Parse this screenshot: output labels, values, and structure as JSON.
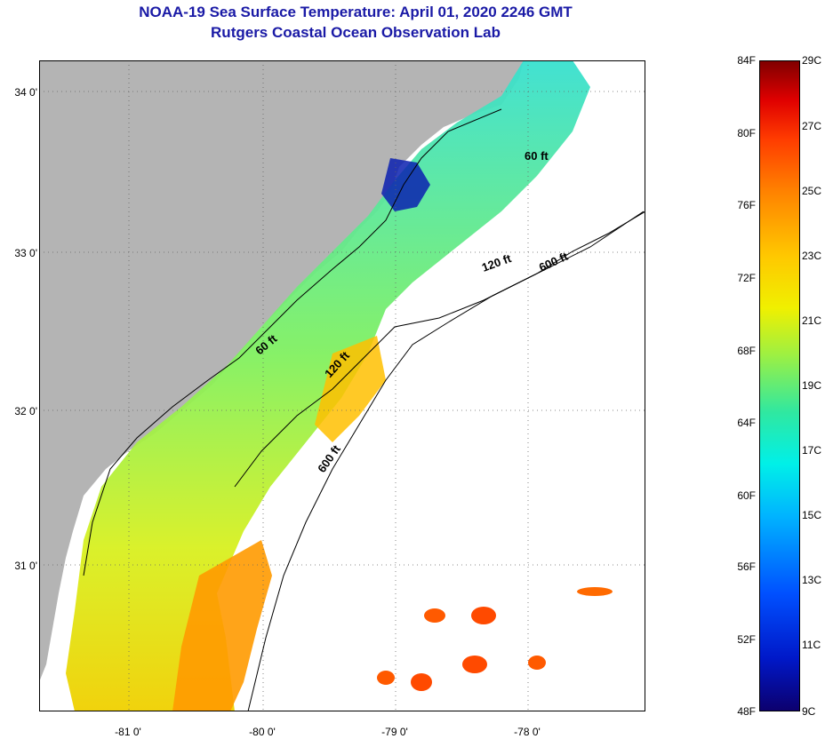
{
  "header": {
    "title": "NOAA-19 Sea Surface Temperature:  April 01, 2020 2246 GMT",
    "subtitle": "Rutgers Coastal Ocean Observation Lab"
  },
  "map": {
    "lat_labels": [
      "34 0'",
      "33 0'",
      "32 0'",
      "31 0'"
    ],
    "lon_labels": [
      "-81 0'",
      "-80 0'",
      "-79 0'",
      "-78 0'"
    ],
    "contour_labels": [
      "60 ft",
      "120 ft",
      "600 ft",
      "60 ft",
      "120 ft",
      "600 ft"
    ],
    "land_color": "#b4b4b4",
    "cloud_color": "#ffffff"
  },
  "colorbar": {
    "fahrenheit": [
      "84F",
      "80F",
      "76F",
      "72F",
      "68F",
      "64F",
      "60F",
      "56F",
      "52F",
      "48F"
    ],
    "celsius": [
      "29C",
      "27C",
      "25C",
      "23C",
      "21C",
      "19C",
      "17C",
      "15C",
      "13C",
      "11C",
      "9C"
    ]
  }
}
